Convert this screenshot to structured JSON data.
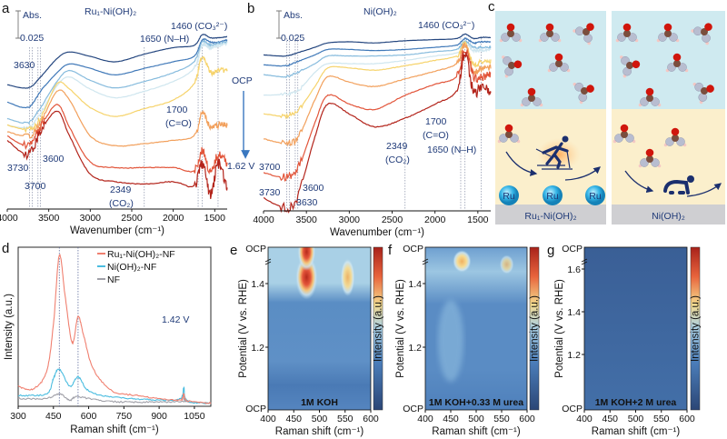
{
  "colors": {
    "annotation": "#1f3a78",
    "spectra": [
      "#24467f",
      "#3f78b8",
      "#86bbdd",
      "#cfe6ef",
      "#f6d36b",
      "#f2a05c",
      "#e2553a",
      "#b3241b"
    ],
    "raman": {
      "Ru1-Ni(OH)2-NF": "#f08070",
      "Ni(OH)2-NF": "#4bbde0",
      "NF": "#a0a0a8"
    },
    "colormap": [
      "#2b4676",
      "#4c7fbb",
      "#a9d0e6",
      "#f4d98c",
      "#e8643c",
      "#a8221a"
    ]
  },
  "chart_data": [
    {
      "panel": "a",
      "type": "line",
      "title": "Ru₁-Ni(OH)₂",
      "xlabel": "Wavenumber (cm⁻¹)",
      "xlim": [
        4000,
        1350
      ],
      "x_reversed": true,
      "xticks": [
        4000,
        3500,
        3000,
        2500,
        2000,
        1500
      ],
      "scale_bar": {
        "label_top": "Abs.",
        "label_bottom": "0.025",
        "value": 0.025
      },
      "x": [
        4000,
        3750,
        3600,
        3400,
        3250,
        3000,
        2700,
        2349,
        2000,
        1750,
        1650,
        1550,
        1460,
        1350
      ],
      "series": [
        {
          "values": [
            0.114,
            0.111,
            0.121,
            0.138,
            0.144,
            0.14,
            0.135,
            0.142,
            0.148,
            0.15,
            0.16,
            0.157,
            0.157,
            0.158
          ]
        },
        {
          "values": [
            0.098,
            0.093,
            0.108,
            0.125,
            0.133,
            0.129,
            0.123,
            0.129,
            0.135,
            0.14,
            0.155,
            0.153,
            0.153,
            0.155
          ]
        },
        {
          "values": [
            0.083,
            0.079,
            0.093,
            0.117,
            0.127,
            0.118,
            0.111,
            0.117,
            0.125,
            0.135,
            0.153,
            0.15,
            0.152,
            0.153
          ]
        },
        {
          "values": [
            0.077,
            0.075,
            0.088,
            0.113,
            0.121,
            0.11,
            0.102,
            0.108,
            0.117,
            0.129,
            0.15,
            0.148,
            0.15,
            0.152
          ]
        },
        {
          "values": [
            0.077,
            0.073,
            0.083,
            0.115,
            0.11,
            0.093,
            0.085,
            0.092,
            0.1,
            0.115,
            0.14,
            0.125,
            0.127,
            0.127
          ]
        },
        {
          "values": [
            0.071,
            0.067,
            0.079,
            0.108,
            0.1,
            0.067,
            0.058,
            0.06,
            0.063,
            0.067,
            0.088,
            0.075,
            0.077,
            0.077
          ]
        },
        {
          "values": [
            0.067,
            0.058,
            0.075,
            0.096,
            0.075,
            0.043,
            0.038,
            0.038,
            0.038,
            0.035,
            0.054,
            0.033,
            0.05,
            0.042
          ]
        },
        {
          "values": [
            0.063,
            0.05,
            0.071,
            0.09,
            0.067,
            0.032,
            0.025,
            0.023,
            0.025,
            0.021,
            0.042,
            0.013,
            0.042,
            0.017
          ]
        }
      ],
      "marker_lines": [
        3730,
        3700,
        3630,
        3600,
        2349,
        1700,
        1650,
        1460
      ],
      "annotations": {
        "co3": "1460 (CO₃²⁻)",
        "nh": "1650 (N–H)",
        "co_num": "1700",
        "co_lab": "(C=O)",
        "co2_num": "2349",
        "co2_lab": "(CO₂)",
        "w3630": "3630",
        "w3600": "3600",
        "w3730": "3730",
        "w3700": "3700",
        "ocp": "OCP",
        "end_potential": "1.62 V"
      }
    },
    {
      "panel": "b",
      "type": "line",
      "title": "Ni(OH)₂",
      "xlabel": "Wavenumber (cm⁻¹)",
      "xlim": [
        4000,
        1350
      ],
      "x_reversed": true,
      "xticks": [
        4000,
        3500,
        3000,
        2500,
        2000,
        1500
      ],
      "scale_bar": {
        "label_top": "Abs.",
        "label_bottom": "0.025",
        "value": 0.025
      },
      "x": [
        4000,
        3750,
        3600,
        3400,
        3250,
        3000,
        2700,
        2349,
        2000,
        1750,
        1650,
        1550,
        1460,
        1350
      ],
      "series": [
        {
          "values": [
            0.143,
            0.142,
            0.145,
            0.15,
            0.154,
            0.155,
            0.154,
            0.156,
            0.157,
            0.158,
            0.162,
            0.158,
            0.159,
            0.159
          ]
        },
        {
          "values": [
            0.134,
            0.133,
            0.137,
            0.143,
            0.148,
            0.148,
            0.147,
            0.148,
            0.15,
            0.152,
            0.158,
            0.154,
            0.155,
            0.155
          ]
        },
        {
          "values": [
            0.125,
            0.123,
            0.127,
            0.135,
            0.142,
            0.142,
            0.142,
            0.143,
            0.146,
            0.148,
            0.155,
            0.15,
            0.15,
            0.15
          ]
        },
        {
          "values": [
            0.106,
            0.107,
            0.11,
            0.127,
            0.135,
            0.135,
            0.135,
            0.138,
            0.142,
            0.145,
            0.153,
            0.147,
            0.147,
            0.148
          ]
        },
        {
          "values": [
            0.089,
            0.087,
            0.092,
            0.114,
            0.131,
            0.131,
            0.129,
            0.133,
            0.138,
            0.142,
            0.153,
            0.135,
            0.137,
            0.137
          ]
        },
        {
          "values": [
            0.066,
            0.062,
            0.067,
            0.102,
            0.123,
            0.118,
            0.114,
            0.121,
            0.128,
            0.135,
            0.152,
            0.128,
            0.131,
            0.131
          ]
        },
        {
          "values": [
            0.035,
            0.031,
            0.039,
            0.081,
            0.106,
            0.098,
            0.093,
            0.106,
            0.116,
            0.123,
            0.148,
            0.123,
            0.123,
            0.125
          ]
        },
        {
          "values": [
            0.012,
            0.003,
            0.014,
            0.068,
            0.098,
            0.089,
            0.077,
            0.085,
            0.098,
            0.11,
            0.145,
            0.108,
            0.114,
            0.11
          ]
        }
      ],
      "marker_lines": [
        3730,
        3700,
        3630,
        3600,
        2349,
        1700,
        1650,
        1460
      ],
      "annotations": {
        "co3": "1460 (CO₃²⁻)",
        "nh": "1650 (N–H)",
        "co_num": "1700",
        "co_lab": "(C=O)",
        "co2_num": "2349",
        "co2_lab": "(CO₂)",
        "w3630": "3630",
        "w3600": "3600",
        "w3730": "3730",
        "w3700": "3700"
      }
    },
    {
      "panel": "d",
      "type": "line",
      "xlabel": "Raman shift (cm⁻¹)",
      "ylabel": "Intensity (a.u.)",
      "xlim": [
        300,
        1120
      ],
      "ylim": [
        0,
        1
      ],
      "xticks": [
        300,
        450,
        600,
        750,
        900,
        1050
      ],
      "annotation": "1.42 V",
      "marker_lines": [
        475,
        555
      ],
      "legend_position": "top-right",
      "series": [
        {
          "name": "Ru₁-Ni(OH)₂-NF",
          "key": "Ru1-Ni(OH)2-NF",
          "x": [
            300,
            360,
            420,
            450,
            475,
            500,
            530,
            555,
            580,
            620,
            700,
            800,
            900,
            990,
            1005,
            1020,
            1120
          ],
          "values": [
            0.13,
            0.11,
            0.22,
            0.53,
            0.98,
            0.71,
            0.41,
            0.58,
            0.45,
            0.24,
            0.1,
            0.07,
            0.05,
            0.04,
            0.08,
            0.035,
            0.02
          ]
        },
        {
          "name": "Ni(OH)₂-NF",
          "key": "Ni(OH)2-NF",
          "x": [
            300,
            420,
            450,
            475,
            520,
            555,
            600,
            700,
            900,
            990,
            1005,
            1020,
            1120
          ],
          "values": [
            0.07,
            0.08,
            0.18,
            0.24,
            0.13,
            0.19,
            0.1,
            0.06,
            0.04,
            0.05,
            0.12,
            0.035,
            0.02
          ]
        },
        {
          "name": "NF",
          "key": "NF",
          "x": [
            300,
            420,
            475,
            520,
            555,
            700,
            990,
            1005,
            1020,
            1120
          ],
          "values": [
            0.05,
            0.05,
            0.08,
            0.04,
            0.06,
            0.03,
            0.03,
            0.05,
            0.03,
            0.02
          ]
        }
      ]
    },
    {
      "panel": "e",
      "type": "heatmap",
      "xlabel": "Raman shift (cm⁻¹)",
      "ylabel": "Potential (V vs. RHE)",
      "colorbar_label": "Intensity (a.u.)",
      "xlim": [
        400,
        600
      ],
      "xticks": [
        400,
        450,
        500,
        550,
        600
      ],
      "yticks": [
        {
          "v": 1.2,
          "label": "1.2"
        },
        {
          "v": 1.4,
          "label": "1.4"
        }
      ],
      "y_end_labels": {
        "bottom": "OCP",
        "top": "OCP"
      },
      "condition": "1M KOH",
      "features": [
        {
          "shift": 475,
          "potential": 1.42,
          "intensity": 1.0,
          "shift_width": 22,
          "potential_width": 0.07
        },
        {
          "shift": 475,
          "potential": 1.5,
          "intensity": 0.85,
          "shift_width": 18,
          "potential_width": 0.06
        },
        {
          "shift": 555,
          "potential": 1.42,
          "intensity": 0.45,
          "shift_width": 14,
          "potential_width": 0.06
        }
      ]
    },
    {
      "panel": "f",
      "type": "heatmap",
      "xlabel": "Raman shift (cm⁻¹)",
      "ylabel": "Potential (V vs. RHE)",
      "colorbar_label": "Intensity (a.u.)",
      "xlim": [
        400,
        600
      ],
      "xticks": [
        400,
        450,
        500,
        550,
        600
      ],
      "yticks": [
        {
          "v": 1.2,
          "label": "1.2"
        },
        {
          "v": 1.4,
          "label": "1.4"
        }
      ],
      "y_end_labels": {
        "bottom": "OCP",
        "top": "OCP"
      },
      "condition": "1M KOH+0.33 M urea",
      "features": [
        {
          "shift": 472,
          "potential": 1.47,
          "intensity": 0.6,
          "shift_width": 18,
          "potential_width": 0.035
        },
        {
          "shift": 560,
          "potential": 1.46,
          "intensity": 0.22,
          "shift_width": 14,
          "potential_width": 0.03
        }
      ]
    },
    {
      "panel": "g",
      "type": "heatmap",
      "xlabel": "Raman shift (cm⁻¹)",
      "ylabel": "Potential (V vs. RHE)",
      "colorbar_label": "Intensity (a.u.)",
      "xlim": [
        400,
        600
      ],
      "xticks": [
        400,
        450,
        500,
        550,
        600
      ],
      "yticks": [
        {
          "v": 1.2,
          "label": "1.2"
        },
        {
          "v": 1.4,
          "label": "1.4"
        },
        {
          "v": 1.6,
          "label": "1.6"
        }
      ],
      "y_end_labels": {
        "bottom": "OCP",
        "top": "OCP"
      },
      "condition": "1M KOH+2 M urea",
      "features": []
    }
  ],
  "panel_c": {
    "left_label": "Ru₁-Ni(OH)₂",
    "right_label": "Ni(OH)₂",
    "site_label": "Ru",
    "icons": [
      "urea-molecule-icon",
      "skier-icon",
      "crawling-baby-icon"
    ]
  },
  "panel_letters": [
    "a",
    "b",
    "c",
    "d",
    "e",
    "f",
    "g"
  ]
}
